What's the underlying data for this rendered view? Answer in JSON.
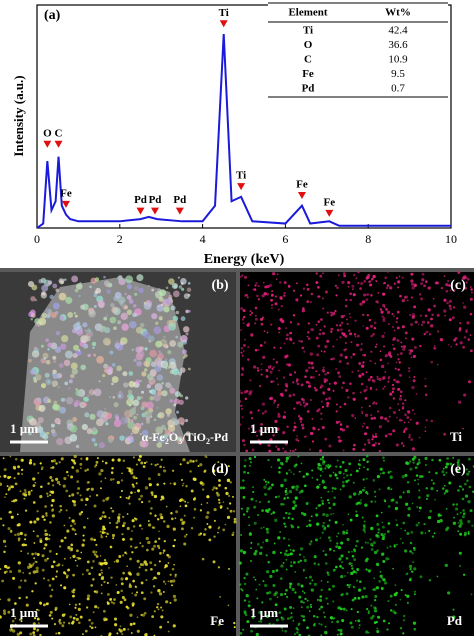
{
  "chart_data": {
    "type": "line",
    "panel_label": "(a)",
    "x_label": "Energy (keV)",
    "y_label": "Intensity (a.u.)",
    "x": [
      0,
      0.15,
      0.25,
      0.35,
      0.45,
      0.52,
      0.6,
      0.7,
      0.8,
      1,
      2,
      2.5,
      2.7,
      2.9,
      3.5,
      4,
      4.3,
      4.51,
      4.7,
      4.93,
      5.2,
      6,
      6.4,
      6.6,
      7.06,
      7.3,
      8,
      10
    ],
    "series": [
      {
        "color": "#1a1adb",
        "values": [
          0,
          2,
          30,
          8,
          12,
          32,
          10,
          6,
          4,
          3,
          3,
          4,
          5,
          4,
          3,
          3,
          10,
          87,
          12,
          14,
          3,
          2,
          10,
          2,
          3,
          1,
          1,
          1
        ]
      }
    ],
    "xlim": [
      0,
      10
    ],
    "xticks": [
      0,
      2,
      4,
      6,
      8,
      10
    ],
    "ylim": [
      0,
      100
    ],
    "annotations": [
      {
        "label": "O",
        "x": 0.25,
        "y": 36
      },
      {
        "label": "C",
        "x": 0.52,
        "y": 36
      },
      {
        "label": "Fe",
        "x": 0.7,
        "y": 9
      },
      {
        "label": "Pd",
        "x": 2.5,
        "y": 6
      },
      {
        "label": "Pd",
        "x": 2.85,
        "y": 6
      },
      {
        "label": "Pd",
        "x": 3.45,
        "y": 6
      },
      {
        "label": "Ti",
        "x": 4.51,
        "y": 90
      },
      {
        "label": "Ti",
        "x": 4.93,
        "y": 17
      },
      {
        "label": "Fe",
        "x": 6.4,
        "y": 13
      },
      {
        "label": "Fe",
        "x": 7.06,
        "y": 5
      }
    ],
    "marker_color": "#e01010"
  },
  "table": {
    "header": [
      "Element",
      "Wt%"
    ],
    "rows": [
      [
        "Ti",
        "42.4"
      ],
      [
        "O",
        "36.6"
      ],
      [
        "C",
        "10.9"
      ],
      [
        "Fe",
        "9.5"
      ],
      [
        "Pd",
        "0.7"
      ]
    ]
  },
  "panels": [
    {
      "label": "(b)",
      "scale": "1 µm",
      "caption_parts": [
        "α-Fe",
        "2",
        "O",
        "3",
        "/TiO",
        "2",
        "-Pd"
      ]
    },
    {
      "label": "(c)",
      "scale": "1 µm",
      "element": "Ti",
      "color": "#e0207a"
    },
    {
      "label": "(d)",
      "scale": "1 µm",
      "element": "Fe",
      "color": "#e8e030"
    },
    {
      "label": "(e)",
      "scale": "1 µm",
      "element": "Pd",
      "color": "#20d020"
    }
  ]
}
